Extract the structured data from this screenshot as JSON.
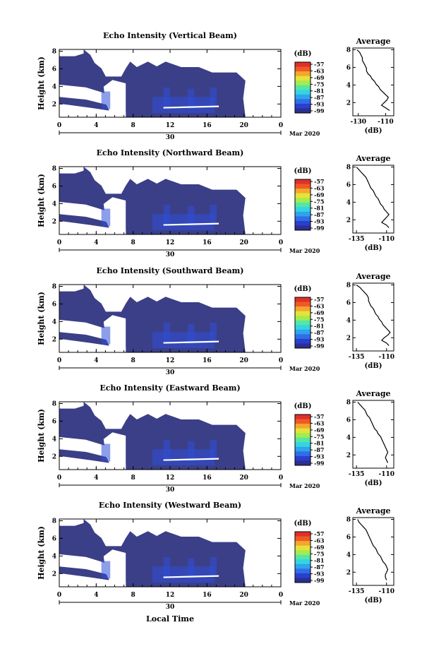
{
  "figure": {
    "xlabel": "Local Time",
    "date_day": "30",
    "date_month": "Mar 2020"
  },
  "colors": {
    "background_echo": "#3b3f87",
    "scale": [
      "#2c2f8e",
      "#2a3fcf",
      "#2f6fe6",
      "#2fa3ee",
      "#34d4e0",
      "#55e6a6",
      "#a4ec4e",
      "#e4e33a",
      "#f5a62f",
      "#ef5a24",
      "#e0302a"
    ]
  },
  "chart_data": [
    {
      "type": "heatmap",
      "title": "Echo Intensity (Vertical Beam)",
      "ylabel": "Height (km)",
      "x_ticks": [
        "0",
        "4",
        "8",
        "12",
        "16",
        "20",
        "0"
      ],
      "xlim": [
        0,
        24
      ],
      "y_ticks": [
        "2",
        "4",
        "6",
        "8"
      ],
      "ylim": [
        0.5,
        8.2
      ],
      "colorbar": {
        "unit": "(dB)",
        "labels": [
          "-57",
          "-63",
          "-69",
          "-75",
          "-81",
          "-87",
          "-93",
          "-99"
        ],
        "range": [
          -99,
          -57
        ]
      },
      "profile": {
        "title": "Average",
        "xlabel": "(dB)",
        "x_ticks": [
          "-130",
          "-110"
        ],
        "xlim": [
          -134,
          -104
        ],
        "y_ticks": [
          "2",
          "4",
          "6",
          "8"
        ],
        "heights": [
          8.0,
          7.7,
          7.4,
          7.1,
          6.8,
          6.5,
          6.2,
          5.9,
          5.6,
          5.3,
          5.0,
          4.7,
          4.4,
          4.1,
          3.8,
          3.5,
          3.2,
          2.9,
          2.6,
          2.3,
          2.0,
          1.7,
          1.4,
          1.1
        ],
        "values": [
          -131,
          -129,
          -128,
          -127,
          -127,
          -126,
          -125,
          -124,
          -124,
          -123,
          -121,
          -120,
          -118,
          -117,
          -115,
          -114,
          -112,
          -110,
          -108,
          -109,
          -111,
          -113,
          -110,
          -107
        ]
      }
    },
    {
      "type": "heatmap",
      "title": "Echo Intensity (Northward Beam)",
      "ylabel": "Height (km)",
      "x_ticks": [
        "0",
        "4",
        "8",
        "12",
        "16",
        "20",
        "0"
      ],
      "xlim": [
        0,
        24
      ],
      "y_ticks": [
        "2",
        "4",
        "6",
        "8"
      ],
      "ylim": [
        0.5,
        8.2
      ],
      "colorbar": {
        "unit": "(dB)",
        "labels": [
          "-57",
          "-63",
          "-69",
          "-75",
          "-81",
          "-87",
          "-93",
          "-99"
        ],
        "range": [
          -99,
          -57
        ]
      },
      "profile": {
        "title": "Average",
        "xlabel": "(dB)",
        "x_ticks": [
          "-135",
          "-110"
        ],
        "xlim": [
          -138,
          -104
        ],
        "y_ticks": [
          "2",
          "4",
          "6",
          "8"
        ],
        "heights": [
          8.0,
          7.7,
          7.4,
          7.1,
          6.8,
          6.5,
          6.2,
          5.9,
          5.6,
          5.3,
          5.0,
          4.7,
          4.4,
          4.1,
          3.8,
          3.5,
          3.2,
          2.9,
          2.6,
          2.3,
          2.0,
          1.7,
          1.4,
          1.1
        ],
        "values": [
          -135,
          -133,
          -131,
          -129,
          -127,
          -126,
          -125,
          -124,
          -123,
          -121,
          -120,
          -119,
          -117,
          -116,
          -115,
          -113,
          -112,
          -110,
          -108,
          -110,
          -112,
          -114,
          -110,
          -108
        ]
      }
    },
    {
      "type": "heatmap",
      "title": "Echo Intensity (Southward Beam)",
      "ylabel": "Height (km)",
      "x_ticks": [
        "0",
        "4",
        "8",
        "12",
        "16",
        "20",
        "0"
      ],
      "xlim": [
        0,
        24
      ],
      "y_ticks": [
        "2",
        "4",
        "6",
        "8"
      ],
      "ylim": [
        0.5,
        8.2
      ],
      "colorbar": {
        "unit": "(dB)",
        "labels": [
          "-57",
          "-63",
          "-69",
          "-75",
          "-81",
          "-87",
          "-93",
          "-99"
        ],
        "range": [
          -99,
          -57
        ]
      },
      "profile": {
        "title": "Average",
        "xlabel": "(dB)",
        "x_ticks": [
          "-135",
          "-110"
        ],
        "xlim": [
          -138,
          -104
        ],
        "y_ticks": [
          "2",
          "4",
          "6",
          "8"
        ],
        "heights": [
          8.0,
          7.7,
          7.4,
          7.1,
          6.8,
          6.5,
          6.2,
          5.9,
          5.6,
          5.3,
          5.0,
          4.7,
          4.4,
          4.1,
          3.8,
          3.5,
          3.2,
          2.9,
          2.6,
          2.3,
          2.0,
          1.7,
          1.4,
          1.1
        ],
        "values": [
          -135,
          -132,
          -130,
          -128,
          -126,
          -125,
          -125,
          -124,
          -123,
          -121,
          -120,
          -119,
          -117,
          -116,
          -114,
          -113,
          -111,
          -109,
          -107,
          -109,
          -112,
          -114,
          -110,
          -108
        ]
      }
    },
    {
      "type": "heatmap",
      "title": "Echo Intensity (Eastward Beam)",
      "ylabel": "Height (km)",
      "x_ticks": [
        "0",
        "4",
        "8",
        "12",
        "16",
        "20",
        "0"
      ],
      "xlim": [
        0,
        24
      ],
      "y_ticks": [
        "2",
        "4",
        "6",
        "8"
      ],
      "ylim": [
        0.5,
        8.2
      ],
      "colorbar": {
        "unit": "(dB)",
        "labels": [
          "-57",
          "-63",
          "-69",
          "-75",
          "-81",
          "-87",
          "-93",
          "-99"
        ],
        "range": [
          -99,
          -57
        ]
      },
      "profile": {
        "title": "Average",
        "xlabel": "(dB)",
        "x_ticks": [
          "-135",
          "-110"
        ],
        "xlim": [
          -138,
          -104
        ],
        "y_ticks": [
          "2",
          "4",
          "6",
          "8"
        ],
        "heights": [
          8.0,
          7.7,
          7.4,
          7.1,
          6.8,
          6.5,
          6.2,
          5.9,
          5.6,
          5.3,
          5.0,
          4.7,
          4.4,
          4.1,
          3.8,
          3.5,
          3.2,
          2.9,
          2.6,
          2.3,
          2.0,
          1.7,
          1.4,
          1.1
        ],
        "values": [
          -134,
          -132,
          -130,
          -128,
          -127,
          -126,
          -124,
          -123,
          -122,
          -121,
          -120,
          -118,
          -117,
          -115,
          -114,
          -113,
          -112,
          -111,
          -110,
          -109,
          -110,
          -111,
          -110,
          -109
        ]
      }
    },
    {
      "type": "heatmap",
      "title": "Echo Intensity (Westward Beam)",
      "ylabel": "Height (km)",
      "x_ticks": [
        "0",
        "4",
        "8",
        "12",
        "16",
        "20",
        "0"
      ],
      "xlim": [
        0,
        24
      ],
      "y_ticks": [
        "2",
        "4",
        "6",
        "8"
      ],
      "ylim": [
        0.5,
        8.2
      ],
      "colorbar": {
        "unit": "(dB)",
        "labels": [
          "-57",
          "-63",
          "-69",
          "-75",
          "-81",
          "-87",
          "-93",
          "-99"
        ],
        "range": [
          -99,
          -57
        ]
      },
      "profile": {
        "title": "Average",
        "xlabel": "(dB)",
        "x_ticks": [
          "-135",
          "-110"
        ],
        "xlim": [
          -138,
          -104
        ],
        "y_ticks": [
          "2",
          "4",
          "6",
          "8"
        ],
        "heights": [
          8.0,
          7.7,
          7.4,
          7.1,
          6.8,
          6.5,
          6.2,
          5.9,
          5.6,
          5.3,
          5.0,
          4.7,
          4.4,
          4.1,
          3.8,
          3.5,
          3.2,
          2.9,
          2.6,
          2.3,
          2.0,
          1.7,
          1.4,
          1.1
        ],
        "values": [
          -134,
          -133,
          -131,
          -129,
          -127,
          -126,
          -125,
          -124,
          -123,
          -122,
          -121,
          -119,
          -118,
          -117,
          -115,
          -114,
          -113,
          -111,
          -110,
          -109,
          -110,
          -111,
          -111,
          -110
        ]
      }
    }
  ]
}
